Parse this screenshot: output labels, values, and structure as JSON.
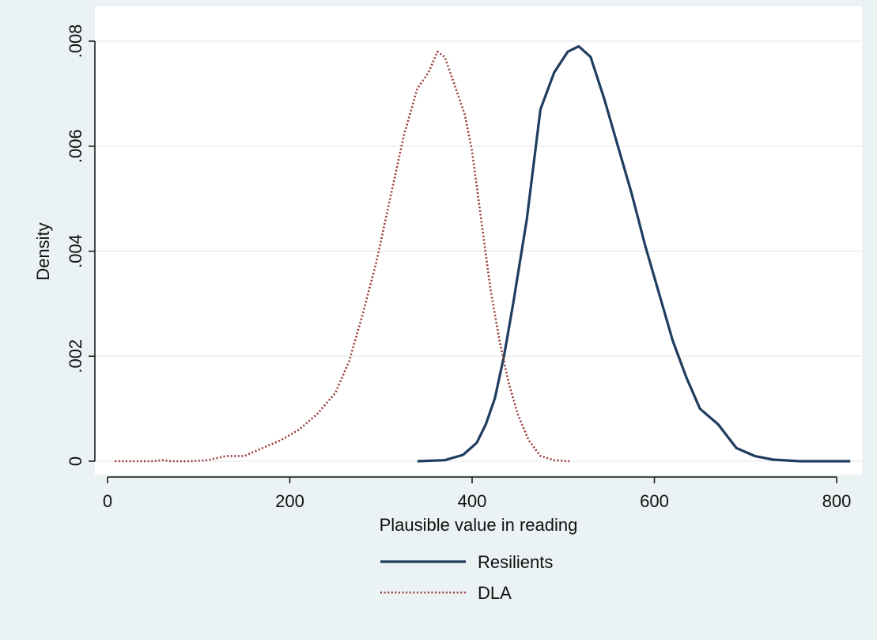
{
  "chart_data": {
    "type": "line",
    "title": "",
    "xlabel": "Plausible value in reading",
    "ylabel": "Density",
    "xlim": [
      0,
      820
    ],
    "ylim": [
      0,
      0.008
    ],
    "x_ticks": [
      0,
      200,
      400,
      600,
      800
    ],
    "x_tick_labels": [
      "0",
      "200",
      "400",
      "600",
      "800"
    ],
    "y_ticks": [
      0,
      0.002,
      0.004,
      0.006,
      0.008
    ],
    "y_tick_labels": [
      "0",
      ".002",
      ".004",
      ".006",
      ".008"
    ],
    "grid": true,
    "legend_position": "bottom",
    "series": [
      {
        "name": "Resilients",
        "color": "#1f3d5f",
        "style": "solid",
        "x": [
          340,
          370,
          390,
          405,
          415,
          425,
          435,
          445,
          460,
          475,
          490,
          505,
          517,
          530,
          545,
          560,
          575,
          590,
          605,
          620,
          635,
          650,
          670,
          690,
          710,
          730,
          760,
          815
        ],
        "y": [
          0.0,
          2e-05,
          0.00012,
          0.00035,
          0.0007,
          0.0012,
          0.002,
          0.003,
          0.0046,
          0.0067,
          0.0074,
          0.0078,
          0.0079,
          0.0077,
          0.0069,
          0.006,
          0.0051,
          0.0041,
          0.0032,
          0.0023,
          0.0016,
          0.001,
          0.0007,
          0.00025,
          0.0001,
          3e-05,
          0.0,
          0.0
        ]
      },
      {
        "name": "DLA",
        "color": "#9b3a3a",
        "style": "dotted",
        "x": [
          8,
          30,
          50,
          60,
          70,
          90,
          110,
          130,
          150,
          170,
          190,
          210,
          230,
          250,
          265,
          280,
          295,
          310,
          325,
          340,
          352,
          362,
          370,
          380,
          392,
          400,
          410,
          420,
          430,
          440,
          450,
          462,
          475,
          490,
          507
        ],
        "y": [
          0.0,
          0.0,
          0.0,
          2e-05,
          0.0,
          0.0,
          2e-05,
          0.0001,
          0.0001,
          0.00025,
          0.0004,
          0.0006,
          0.0009,
          0.0013,
          0.0019,
          0.0028,
          0.0038,
          0.005,
          0.0062,
          0.0071,
          0.0074,
          0.0078,
          0.0077,
          0.0072,
          0.0066,
          0.0059,
          0.0046,
          0.0033,
          0.0023,
          0.0015,
          0.0009,
          0.0004,
          0.0001,
          2e-05,
          0.0
        ]
      }
    ]
  }
}
